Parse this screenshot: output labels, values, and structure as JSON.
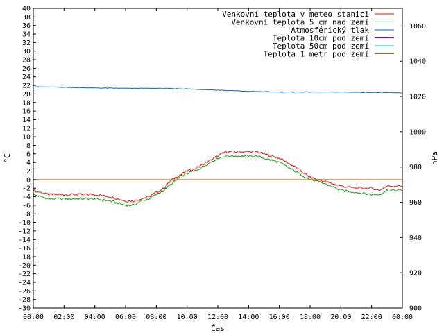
{
  "chart_data": {
    "type": "line",
    "xlabel": "Čas",
    "ylabel_left": "°C",
    "ylabel_right": "hPa",
    "xlim": [
      0,
      24
    ],
    "ylim_left": [
      -30,
      40
    ],
    "ylim_right": [
      900,
      1070
    ],
    "x_tick_labels": [
      "00:00",
      "02:00",
      "04:00",
      "06:00",
      "08:00",
      "10:00",
      "12:00",
      "14:00",
      "16:00",
      "18:00",
      "20:00",
      "22:00",
      "00:00"
    ],
    "y_left_ticks": [
      -30,
      -28,
      -26,
      -24,
      -22,
      -20,
      -18,
      -16,
      -14,
      -12,
      -10,
      -8,
      -6,
      -4,
      -2,
      0,
      2,
      4,
      6,
      8,
      10,
      12,
      14,
      16,
      18,
      20,
      22,
      24,
      26,
      28,
      30,
      32,
      34,
      36,
      38,
      40
    ],
    "y_right_ticks": [
      900,
      920,
      940,
      960,
      980,
      1000,
      1020,
      1040,
      1060
    ],
    "legend_position": "top-right",
    "series": [
      {
        "name": "Venkovní teplota v meteo stanici",
        "color": "#ff0000",
        "axis": "left",
        "x": [
          0,
          0.5,
          1,
          1.5,
          2,
          3,
          4,
          5,
          5.5,
          6,
          6.5,
          7,
          7.5,
          8,
          8.5,
          9,
          9.5,
          10,
          10.5,
          11,
          11.5,
          12,
          12.5,
          13,
          13.5,
          14,
          14.5,
          15,
          16,
          17,
          18,
          19,
          20,
          21,
          22,
          22.5,
          23,
          24
        ],
        "values": [
          -2.5,
          -3.0,
          -3.5,
          -3.5,
          -3.5,
          -3.5,
          -3.5,
          -4.0,
          -4.5,
          -5.0,
          -5.0,
          -4.5,
          -4.0,
          -3.0,
          -2.0,
          0,
          1.0,
          2.0,
          2.5,
          3.5,
          4.5,
          5.5,
          6.5,
          6.5,
          6.5,
          6.5,
          6.5,
          6.0,
          5.0,
          3.0,
          0.5,
          -0.5,
          -1.5,
          -2.0,
          -2.0,
          -2.5,
          -1.5,
          -1.5
        ]
      },
      {
        "name": "Venkovní teplota 5 cm nad zemí",
        "color": "#00a000",
        "axis": "left",
        "x": [
          0,
          0.5,
          1,
          1.5,
          2,
          3,
          4,
          5,
          5.5,
          6,
          6.5,
          7,
          7.5,
          8,
          8.5,
          9,
          9.5,
          10,
          10.5,
          11,
          11.5,
          12,
          12.5,
          13,
          13.5,
          14,
          14.5,
          15,
          16,
          17,
          18,
          19,
          20,
          21,
          22,
          22.5,
          23,
          24
        ],
        "values": [
          -3.5,
          -4.0,
          -4.5,
          -4.5,
          -4.5,
          -4.5,
          -4.5,
          -5.0,
          -5.5,
          -6.0,
          -6.0,
          -5.0,
          -4.5,
          -3.5,
          -2.5,
          -1.0,
          0.5,
          1.5,
          2.0,
          3.0,
          4.0,
          5.0,
          5.5,
          5.5,
          5.5,
          5.5,
          5.5,
          5.0,
          4.0,
          2.0,
          0,
          -1.0,
          -2.5,
          -3.0,
          -3.5,
          -3.5,
          -2.5,
          -2.5
        ]
      },
      {
        "name": "Atmosférický tlak",
        "color": "#0066cc",
        "axis": "right",
        "x": [
          0,
          2,
          4,
          6,
          8,
          10,
          12,
          14,
          16,
          18,
          20,
          22,
          24
        ],
        "values": [
          1025.5,
          1025.2,
          1024.8,
          1024.6,
          1024.6,
          1024.3,
          1023.6,
          1022.9,
          1022.5,
          1022.5,
          1022.5,
          1022.3,
          1022.1
        ]
      },
      {
        "name": "Teplota 10cm pod zemí",
        "color": "#9900cc",
        "axis": "left",
        "x": [],
        "values": []
      },
      {
        "name": "Teplota 50cm pod zemí",
        "color": "#00ccdd",
        "axis": "left",
        "x": [],
        "values": []
      },
      {
        "name": "Teplota 1 metr pod zemí",
        "color": "#cc6600",
        "axis": "left",
        "x": [
          0,
          24
        ],
        "values": [
          0,
          0
        ]
      }
    ]
  }
}
